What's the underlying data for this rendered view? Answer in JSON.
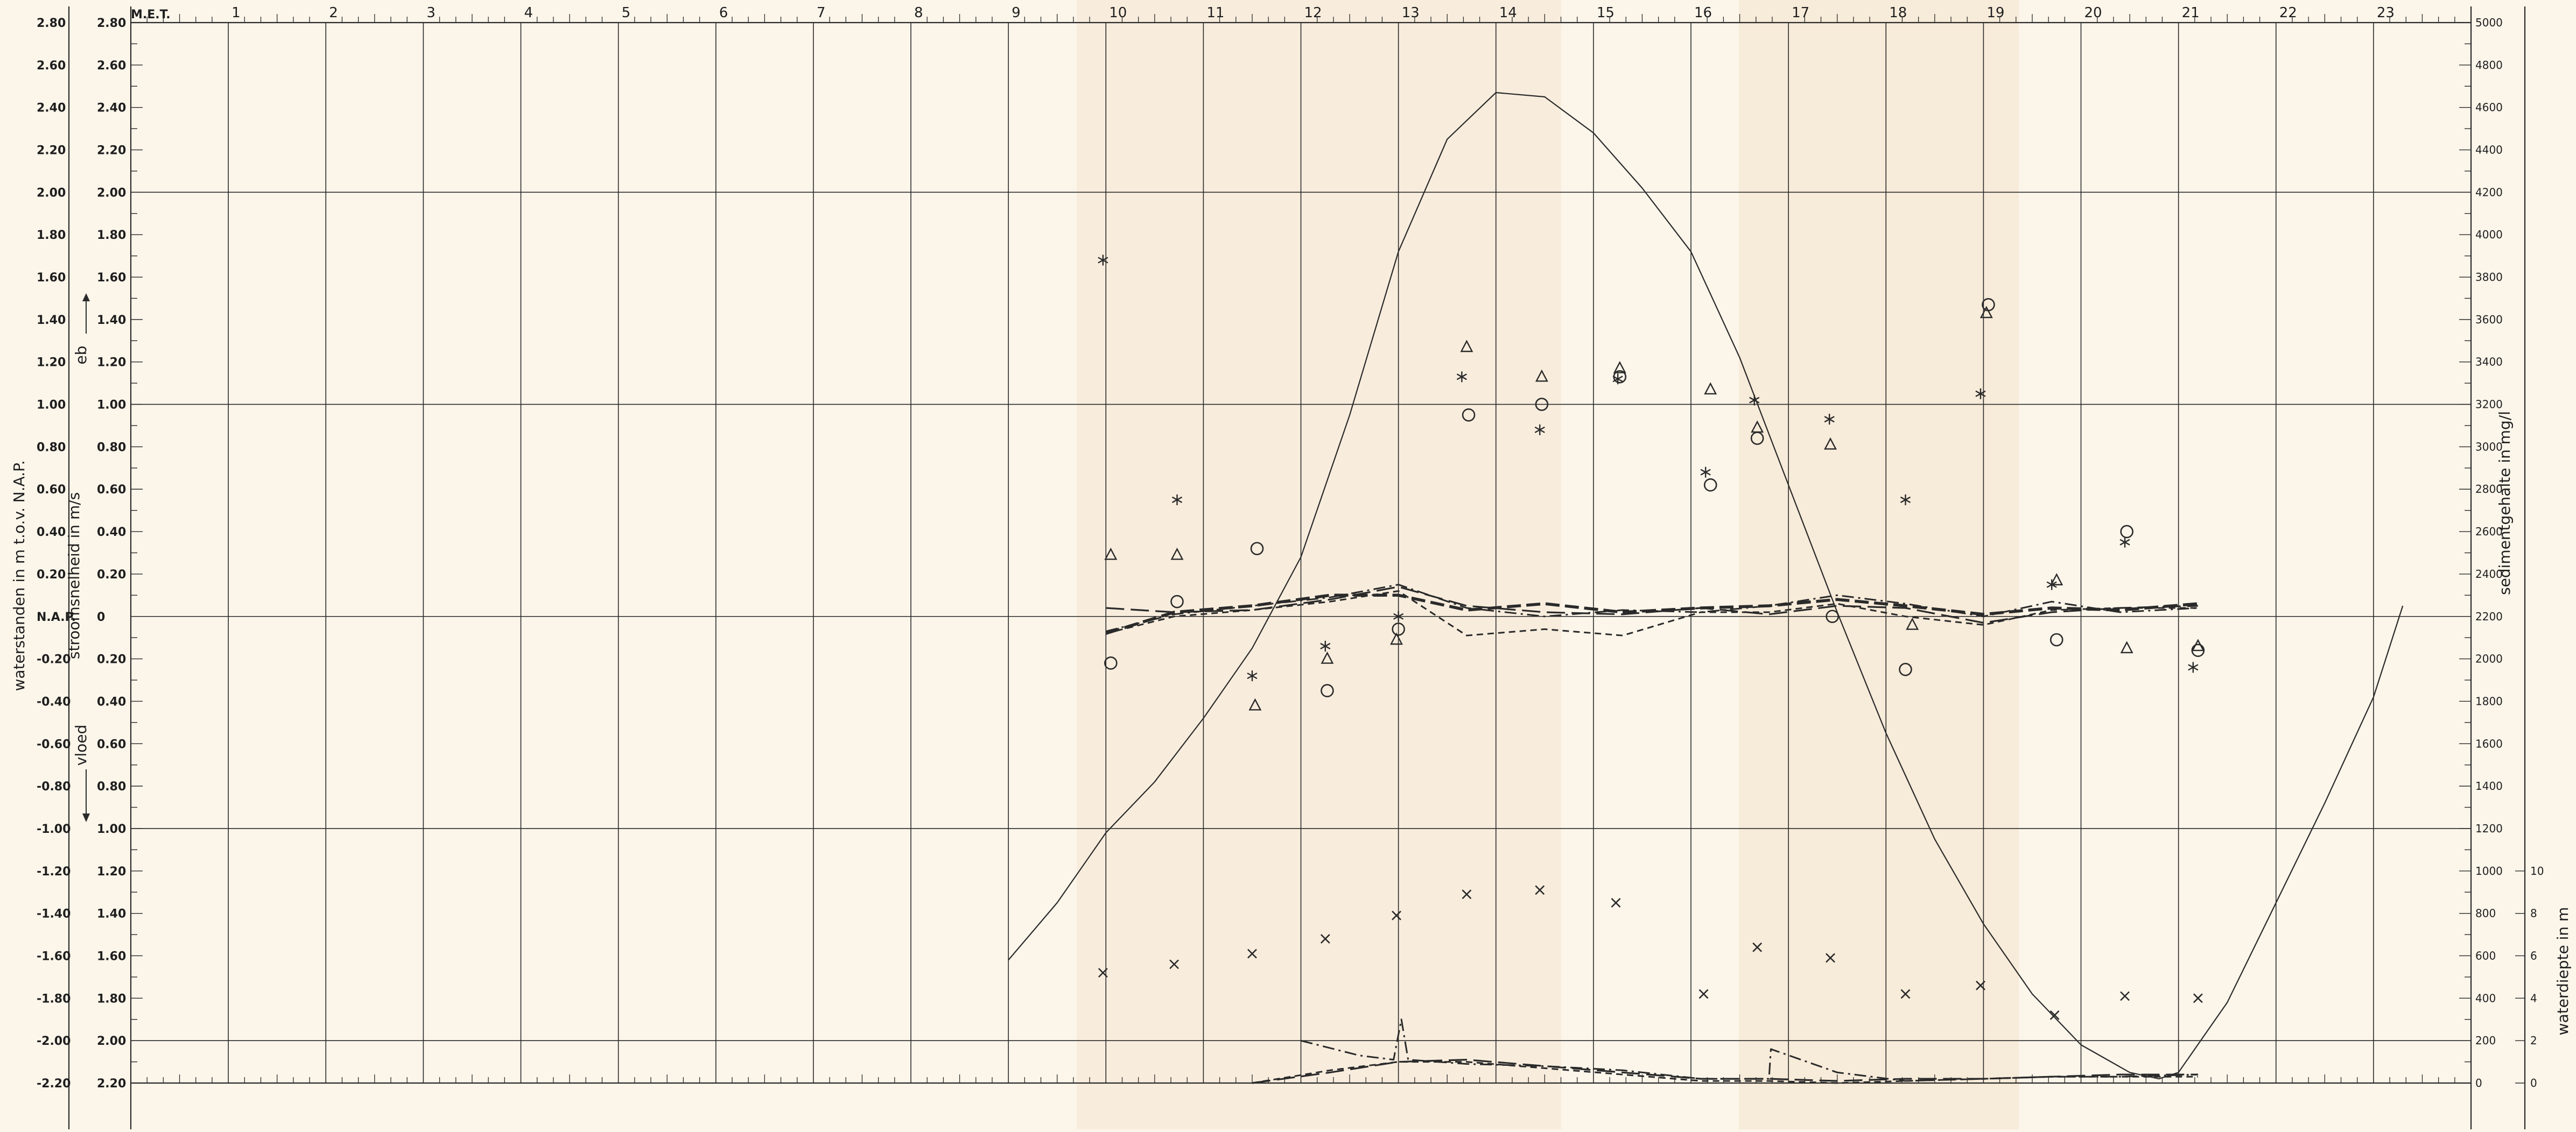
{
  "chart_data": {
    "type": "line",
    "time_axis": {
      "label": "M.E.T.",
      "ticks": [
        "1",
        "2",
        "3",
        "4",
        "5",
        "6",
        "7",
        "8",
        "9",
        "10",
        "11",
        "12",
        "13",
        "14",
        "15",
        "16",
        "17",
        "18",
        "19",
        "20",
        "21",
        "22",
        "23"
      ]
    },
    "left_axis_1": {
      "label": "waterstanden in m t.o.v. N.A.P.",
      "ticks": [
        "2.80",
        "2.60",
        "2.40",
        "2.20",
        "2.00",
        "1.80",
        "1.60",
        "1.40",
        "1.20",
        "1.00",
        "0.80",
        "0.60",
        "0.40",
        "0.20",
        "N.A.P.",
        "-0.20",
        "-0.40",
        "-0.60",
        "-0.80",
        "-1.00",
        "-1.20",
        "-1.40",
        "-1.60",
        "-1.80",
        "-2.00",
        "-2.20"
      ],
      "range": [
        -2.2,
        2.8
      ]
    },
    "left_axis_2": {
      "label": "stroomsnelheid in m/s",
      "eb_label": "eb",
      "vloed_label": "vloed",
      "ticks": [
        "2.80",
        "2.60",
        "2.40",
        "2.20",
        "2.00",
        "1.80",
        "1.60",
        "1.40",
        "1.20",
        "1.00",
        "0.80",
        "0.60",
        "0.40",
        "0.20",
        "0",
        "0.20",
        "0.40",
        "0.60",
        "0.80",
        "1.00",
        "1.20",
        "1.40",
        "1.60",
        "1.80",
        "2.00",
        "2.20"
      ]
    },
    "right_axis_1": {
      "label": "sedimentgehalte in mg/l",
      "ticks": [
        "5000",
        "4800",
        "4600",
        "4400",
        "4200",
        "4000",
        "3800",
        "3600",
        "3400",
        "3200",
        "3000",
        "2800",
        "2600",
        "2400",
        "2200",
        "2000",
        "1800",
        "1600",
        "1400",
        "1200",
        "1000",
        "800",
        "600",
        "400",
        "200",
        "0"
      ],
      "range": [
        0,
        5000
      ]
    },
    "right_axis_2": {
      "label": "waterdiepte in m",
      "ticks": [
        "10",
        "8",
        "6",
        "4",
        "2",
        "0"
      ],
      "range": [
        0,
        10
      ]
    },
    "x_range": [
      0,
      24
    ],
    "y_range": [
      -2.2,
      2.8
    ],
    "series": [
      {
        "style": "solid-thin",
        "x": [
          9.0,
          9.5,
          10.0,
          10.5,
          11.0,
          11.5,
          12.0,
          12.5,
          13.0,
          13.5,
          14.0,
          14.5,
          15.0,
          15.5,
          16.0,
          16.5,
          17.0,
          17.5,
          18.0,
          18.5,
          19.0,
          19.5,
          20.0,
          20.5,
          20.8,
          21.0,
          21.5,
          22.0,
          22.5,
          23.0,
          23.3
        ],
        "y": [
          -1.62,
          -1.35,
          -1.02,
          -0.78,
          -0.48,
          -0.15,
          0.28,
          0.95,
          1.72,
          2.25,
          2.47,
          2.45,
          2.28,
          2.02,
          1.72,
          1.22,
          0.62,
          0.02,
          -0.55,
          -1.05,
          -1.45,
          -1.78,
          -2.02,
          -2.15,
          -2.18,
          -2.15,
          -1.82,
          -1.35,
          -0.88,
          -0.38,
          0.05
        ]
      },
      {
        "style": "long-dash",
        "x": [
          10.0,
          10.7,
          11.5,
          12.3,
          13.0,
          13.7,
          14.5,
          15.3,
          16.1,
          16.8,
          17.5,
          18.2,
          19.0,
          19.7,
          20.4,
          21.2
        ],
        "y": [
          0.04,
          0.02,
          0.03,
          0.08,
          0.14,
          0.05,
          0.02,
          0.01,
          0.04,
          0.01,
          0.05,
          0.04,
          -0.03,
          0.02,
          0.04,
          0.05
        ]
      },
      {
        "style": "thick-dash",
        "x": [
          10.0,
          10.7,
          11.5,
          12.3,
          13.0,
          13.7,
          14.5,
          15.3,
          16.1,
          16.8,
          17.5,
          18.2,
          19.0,
          19.7,
          20.4,
          21.2
        ],
        "y": [
          -0.08,
          0.02,
          0.05,
          0.1,
          0.1,
          0.03,
          0.06,
          0.02,
          0.04,
          0.05,
          0.08,
          0.05,
          0.01,
          0.04,
          0.03,
          0.06
        ]
      },
      {
        "style": "dash-dot",
        "x": [
          10.0,
          10.7,
          11.5,
          12.3,
          13.0,
          13.7,
          14.5,
          15.3,
          16.1,
          16.8,
          17.5,
          18.2,
          19.0,
          19.7,
          20.4,
          21.2
        ],
        "y": [
          -0.07,
          0.01,
          0.05,
          0.09,
          0.15,
          0.04,
          0.0,
          0.03,
          0.02,
          0.05,
          0.1,
          0.06,
          0.0,
          0.07,
          0.02,
          0.04
        ]
      },
      {
        "style": "short-dash",
        "x": [
          10.0,
          10.7,
          11.5,
          12.3,
          13.0,
          13.7,
          14.5,
          15.3,
          16.1,
          16.8,
          17.5,
          18.2,
          19.0,
          19.7,
          20.4,
          21.2
        ],
        "y": [
          -0.08,
          0.0,
          0.03,
          0.07,
          0.12,
          -0.09,
          -0.06,
          -0.09,
          0.02,
          0.02,
          0.06,
          0.0,
          -0.04,
          0.03,
          0.04,
          0.04
        ]
      },
      {
        "style": "long-dash",
        "x": [
          11.5,
          12.3,
          13.0,
          13.7,
          14.5,
          15.3,
          16.1,
          16.8,
          17.5,
          18.2,
          19.0,
          19.7,
          20.4,
          21.2
        ],
        "y": [
          -2.2,
          -2.15,
          -2.1,
          -2.09,
          -2.12,
          -2.15,
          -2.18,
          -2.18,
          -2.19,
          -2.18,
          -2.18,
          -2.17,
          -2.16,
          -2.16
        ]
      },
      {
        "style": "short-dash",
        "x": [
          11.5,
          12.3,
          13.0,
          13.7,
          14.5,
          15.3,
          16.1,
          16.8,
          17.5,
          18.2,
          19.0,
          19.7,
          20.4,
          21.2
        ],
        "y": [
          -2.2,
          -2.14,
          -2.1,
          -2.1,
          -2.13,
          -2.16,
          -2.19,
          -2.19,
          -2.2,
          -2.19,
          -2.18,
          -2.17,
          -2.17,
          -2.17
        ]
      },
      {
        "style": "dash-dot",
        "x": [
          12.0,
          12.6,
          12.95,
          13.03,
          13.1,
          13.7,
          14.5,
          15.3,
          16.1,
          16.8,
          16.82,
          17.5,
          18.2,
          19.0,
          19.7,
          20.4,
          21.2
        ],
        "y": [
          -2.0,
          -2.07,
          -2.09,
          -1.9,
          -2.09,
          -2.11,
          -2.12,
          -2.14,
          -2.18,
          -2.18,
          -2.04,
          -2.15,
          -2.19,
          -2.18,
          -2.17,
          -2.17,
          -2.16
        ]
      },
      {
        "style": "markers-asterisk",
        "x": [
          9.97,
          10.73,
          11.5,
          12.25,
          13.0,
          13.65,
          14.45,
          15.25,
          16.15,
          16.65,
          17.42,
          18.2,
          18.97,
          19.7,
          20.45,
          21.15
        ],
        "y": [
          1.68,
          0.55,
          -0.28,
          -0.14,
          0.0,
          1.13,
          0.88,
          1.12,
          0.68,
          1.02,
          0.93,
          0.55,
          1.05,
          0.15,
          0.35,
          -0.24
        ]
      },
      {
        "style": "markers-triangle",
        "x": [
          10.05,
          10.73,
          11.53,
          12.27,
          12.98,
          13.7,
          14.47,
          15.27,
          16.2,
          16.68,
          17.43,
          18.27,
          19.03,
          19.75,
          20.47,
          21.2
        ],
        "y": [
          0.29,
          0.29,
          -0.42,
          -0.2,
          -0.11,
          1.27,
          1.13,
          1.17,
          1.07,
          0.89,
          0.81,
          -0.04,
          1.43,
          0.17,
          -0.15,
          -0.14
        ]
      },
      {
        "style": "markers-circle",
        "x": [
          10.05,
          10.73,
          11.55,
          12.27,
          13.0,
          13.72,
          14.47,
          15.27,
          16.2,
          16.68,
          17.45,
          18.2,
          19.05,
          19.75,
          20.47,
          21.2
        ],
        "y": [
          -0.22,
          0.07,
          0.32,
          -0.35,
          -0.06,
          0.95,
          1.0,
          1.13,
          0.62,
          0.84,
          0.0,
          -0.25,
          1.47,
          -0.11,
          0.4,
          -0.16
        ]
      },
      {
        "style": "markers-cross",
        "x": [
          9.97,
          10.7,
          11.5,
          12.25,
          12.98,
          13.7,
          14.45,
          15.23,
          16.13,
          16.68,
          17.43,
          18.2,
          18.97,
          19.73,
          20.45,
          21.2
        ],
        "y": [
          -1.68,
          -1.64,
          -1.59,
          -1.52,
          -1.41,
          -1.31,
          -1.29,
          -1.35,
          -1.78,
          -1.56,
          -1.61,
          -1.78,
          -1.74,
          -1.88,
          -1.79,
          -1.8
        ]
      }
    ]
  }
}
